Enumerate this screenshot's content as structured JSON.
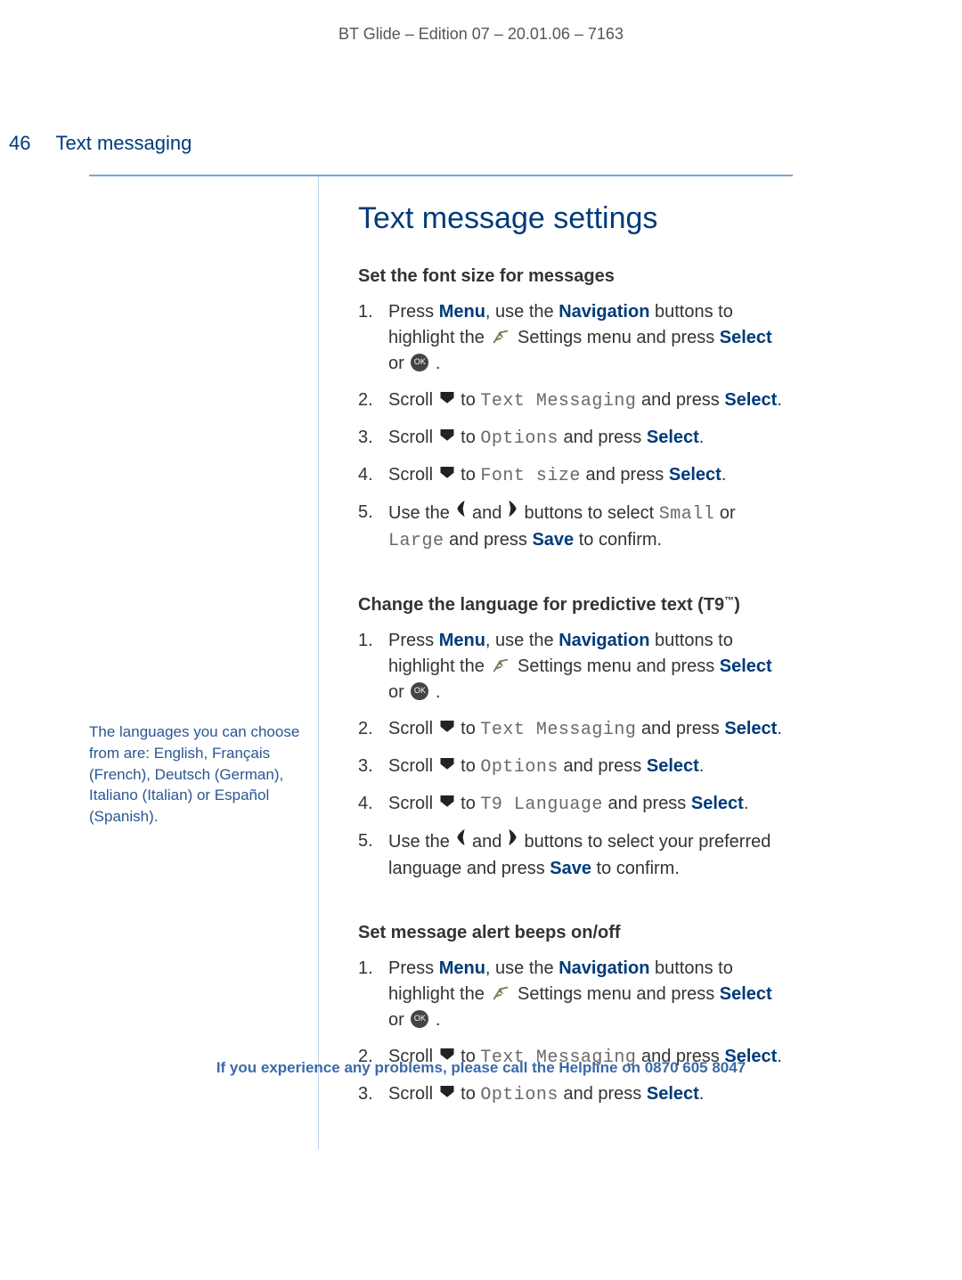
{
  "meta": "BT Glide – Edition 07 – 20.01.06 – 7163",
  "page_num": "46",
  "page_section": "Text messaging",
  "main_title": "Text message settings",
  "sidebar_note": "The languages you can choose from are: English, Français (French), Deutsch (German), Italiano (Italian) or Español (Spanish).",
  "colors": {
    "accent": "#003a7a",
    "rule": "#7aa6d6",
    "side_border": "#bcd0e4",
    "sidebar_text": "#2a5693",
    "body_text": "#333333",
    "lcd_text": "#696969",
    "footer_text": "#3a6aa8"
  },
  "sections": [
    {
      "heading": "Set the font size for messages",
      "steps": [
        {
          "t": "step_menu_settings"
        },
        {
          "t": "scroll_text_messaging"
        },
        {
          "t": "scroll_options"
        },
        {
          "t": "scroll_fontsize"
        },
        {
          "t": "lr_small_large_save"
        }
      ]
    },
    {
      "heading": "Change the language for predictive text (T9™)",
      "heading_plain": "Change the language for predictive text (T9",
      "heading_tm": "™",
      "heading_close": ")",
      "steps": [
        {
          "t": "step_menu_settings"
        },
        {
          "t": "scroll_text_messaging"
        },
        {
          "t": "scroll_options"
        },
        {
          "t": "scroll_t9lang"
        },
        {
          "t": "lr_language_save"
        }
      ]
    },
    {
      "heading": "Set message alert beeps on/off",
      "steps": [
        {
          "t": "step_menu_settings"
        },
        {
          "t": "scroll_text_messaging"
        },
        {
          "t": "scroll_options"
        }
      ]
    }
  ],
  "kw": {
    "menu": "Menu",
    "navigation": "Navigation",
    "select": "Select",
    "save": "Save"
  },
  "lcd": {
    "text_messaging": "Text Messaging",
    "options": "Options",
    "font_size": "Font size",
    "t9_language": "T9 Language",
    "small": "Small",
    "large": "Large"
  },
  "frag": {
    "press": "Press ",
    "use_the": ", use the ",
    "buttons_highlight_the": " buttons to highlight the ",
    "settings_menu_press": " Settings menu and press ",
    "or": " or ",
    "scroll": "Scroll ",
    "to": " to ",
    "and_press": " and press ",
    "use_the2": "Use the ",
    "and": " and ",
    "buttons_select": " buttons to select ",
    "buttons_select_pref": " buttons to select your preferred language and press ",
    "to_confirm": " to confirm.",
    "or_word": " or ",
    "period": "."
  },
  "footer": {
    "text": "If you experience any problems, please call the Helpline on ",
    "phone": "0870 605 8047"
  }
}
